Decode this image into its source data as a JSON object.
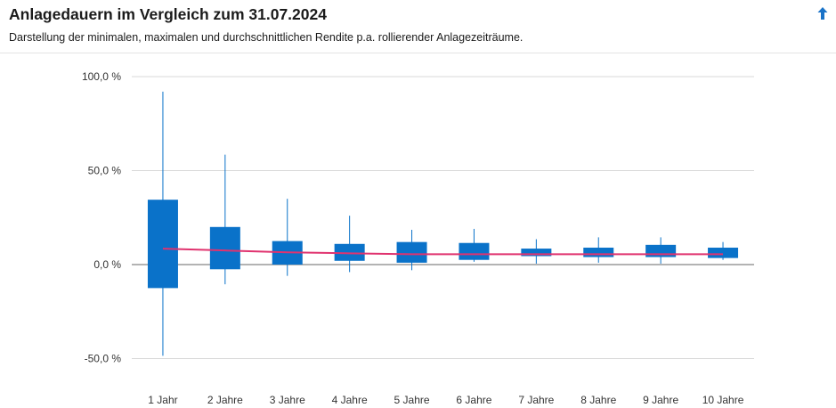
{
  "header": {
    "title": "Anlagedauern im Vergleich zum 31.07.2024",
    "subtitle": "Darstellung der minimalen, maximalen und durchschnittlichen Rendite p.a. rollierender Anlagezeiträume.",
    "up_icon": "arrow-up-icon"
  },
  "colors": {
    "box": "#0a72c9",
    "average_line": "#e0336f",
    "grid": "#d9d9d9",
    "zero_line": "#9a9a9a",
    "up_icon": "#1a73c8"
  },
  "chart_data": {
    "type": "boxplot",
    "title": "Anlagedauern im Vergleich zum 31.07.2024",
    "subtitle": "Darstellung der minimalen, maximalen und durchschnittlichen Rendite p.a. rollierender Anlagezeiträume.",
    "categories": [
      "1 Jahr",
      "2 Jahre",
      "3 Jahre",
      "4 Jahre",
      "5 Jahre",
      "6 Jahre",
      "7 Jahre",
      "8 Jahre",
      "9 Jahre",
      "10 Jahre"
    ],
    "y_ticks": [
      -50,
      0,
      50,
      100
    ],
    "y_tick_labels": [
      "-50,0 %",
      "0,0 %",
      "50,0 %",
      "100,0 %"
    ],
    "ylim": [
      -52,
      100
    ],
    "whisker_low": [
      -48.5,
      -10.5,
      -6.0,
      -4.0,
      -3.0,
      1.5,
      0.5,
      1.0,
      0.5,
      2.5
    ],
    "whisker_high": [
      92.0,
      58.5,
      35.0,
      26.0,
      18.5,
      19.0,
      13.5,
      14.5,
      14.5,
      12.0
    ],
    "box_low": [
      -12.5,
      -2.5,
      0.0,
      2.0,
      1.0,
      2.5,
      4.5,
      4.0,
      4.0,
      3.5
    ],
    "box_high": [
      34.5,
      20.0,
      12.5,
      11.0,
      12.0,
      11.5,
      8.5,
      9.0,
      10.5,
      9.0
    ],
    "average": [
      8.5,
      7.5,
      6.5,
      6.0,
      5.5,
      5.5,
      5.5,
      5.5,
      5.5,
      5.5
    ],
    "grid": true,
    "legend": "none"
  }
}
